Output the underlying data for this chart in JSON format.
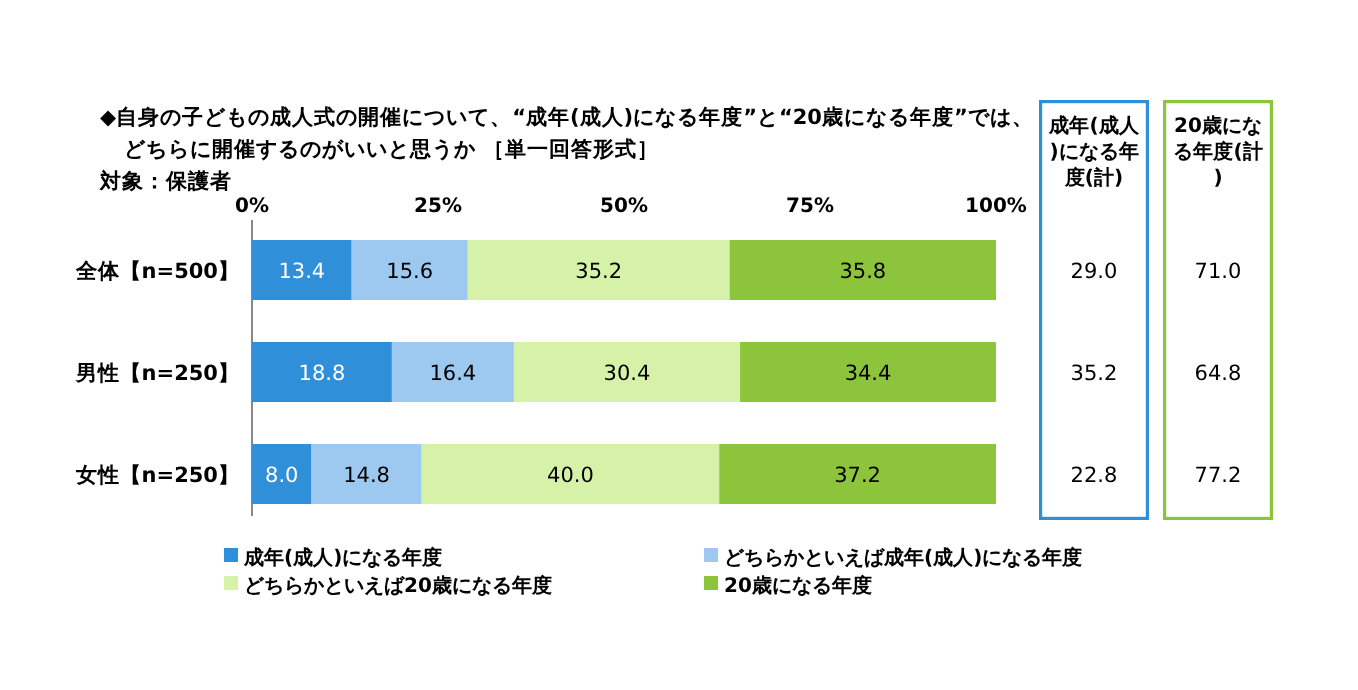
{
  "chart_data": {
    "type": "bar",
    "orientation": "horizontal",
    "stacked": true,
    "title": "◆自身の子どもの成人式の開催について、“成年(成人)になる年度”と“20歳になる年度”では、",
    "subtitle": "どちらに開催するのがいいと思うか ［単一回答形式］",
    "annotations": [
      "対象：保護者",
      "成年(成人)になる年度(計)",
      "29.0",
      "35.2",
      "22.8",
      "20歳になる年度(計)",
      "71.0",
      "64.8",
      "77.2"
    ],
    "categories": [
      "全体【n=500】",
      "男性【n=250】",
      "女性【n=250】"
    ],
    "series": [
      {
        "name": "成年(成人)になる年度",
        "color": "#2f8fd8",
        "values": [
          13.4,
          18.8,
          8.0
        ],
        "value_labels": [
          "13.4",
          "18.8",
          "8.0"
        ]
      },
      {
        "name": "どちらかといえば成年(成人)になる年度",
        "color": "#9dc8ef",
        "values": [
          15.6,
          16.4,
          14.8
        ],
        "value_labels": [
          "15.6",
          "16.4",
          "14.8"
        ]
      },
      {
        "name": "どちらかといえば20歳になる年度",
        "color": "#d5f2a8",
        "values": [
          35.2,
          30.4,
          40.0
        ],
        "value_labels": [
          "35.2",
          "30.4",
          "40.0"
        ]
      },
      {
        "name": "20歳になる年度",
        "color": "#8cc43c",
        "values": [
          35.8,
          34.4,
          37.2
        ],
        "value_labels": [
          "35.8",
          "34.4",
          "37.2"
        ]
      }
    ],
    "xlim": [
      0,
      100
    ],
    "xticks": [
      {
        "value": 0,
        "label": "0%"
      },
      {
        "value": 25,
        "label": "25%"
      },
      {
        "value": 50,
        "label": "50%"
      },
      {
        "value": 75,
        "label": "75%"
      },
      {
        "value": 100,
        "label": "100%"
      }
    ],
    "legend": "bottom"
  }
}
